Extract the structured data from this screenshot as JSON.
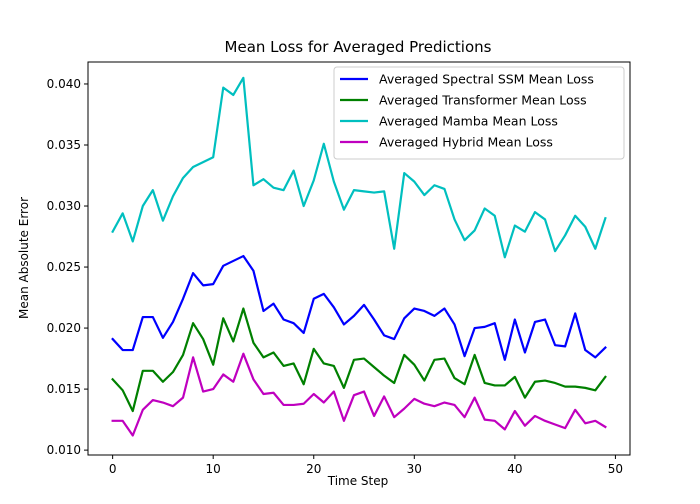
{
  "chart_data": {
    "type": "line",
    "title": "Mean Loss for Averaged Predictions",
    "xlabel": "Time Step",
    "ylabel": "Mean Absolute Error",
    "xlim": [
      -2.45,
      51.45
    ],
    "ylim": [
      0.0096,
      0.0418
    ],
    "xticks": [
      0,
      10,
      20,
      30,
      40,
      50
    ],
    "yticks": [
      0.01,
      0.015,
      0.02,
      0.025,
      0.03,
      0.035,
      0.04
    ],
    "xtick_labels": [
      "0",
      "10",
      "20",
      "30",
      "40",
      "50"
    ],
    "ytick_labels": [
      "0.010",
      "0.015",
      "0.020",
      "0.025",
      "0.030",
      "0.035",
      "0.040"
    ],
    "grid": false,
    "legend_position": "upper right",
    "x": [
      0,
      1,
      2,
      3,
      4,
      5,
      6,
      7,
      8,
      9,
      10,
      11,
      12,
      13,
      14,
      15,
      16,
      17,
      18,
      19,
      20,
      21,
      22,
      23,
      24,
      25,
      26,
      27,
      28,
      29,
      30,
      31,
      32,
      33,
      34,
      35,
      36,
      37,
      38,
      39,
      40,
      41,
      42,
      43,
      44,
      45,
      46,
      47,
      48,
      49
    ],
    "series": [
      {
        "name": "Averaged Spectral SSM Mean Loss",
        "color": "#0000ff",
        "values": [
          0.0191,
          0.0182,
          0.0182,
          0.0209,
          0.0209,
          0.0192,
          0.0205,
          0.0224,
          0.0245,
          0.0235,
          0.0236,
          0.0251,
          0.0255,
          0.0259,
          0.0247,
          0.0214,
          0.022,
          0.0207,
          0.0204,
          0.0196,
          0.0224,
          0.0228,
          0.0217,
          0.0203,
          0.021,
          0.0219,
          0.0207,
          0.0194,
          0.0191,
          0.0208,
          0.0216,
          0.0214,
          0.021,
          0.0216,
          0.0203,
          0.0177,
          0.02,
          0.0201,
          0.0204,
          0.0174,
          0.0207,
          0.018,
          0.0205,
          0.0207,
          0.0186,
          0.0185,
          0.0212,
          0.0182,
          0.0176,
          0.0184
        ]
      },
      {
        "name": "Averaged Transformer Mean Loss",
        "color": "#008000",
        "values": [
          0.0158,
          0.0149,
          0.0132,
          0.0165,
          0.0165,
          0.0156,
          0.0164,
          0.0178,
          0.0204,
          0.0191,
          0.017,
          0.0208,
          0.0189,
          0.0216,
          0.0188,
          0.0176,
          0.018,
          0.0169,
          0.0171,
          0.0154,
          0.0183,
          0.0171,
          0.0169,
          0.0151,
          0.0174,
          0.0175,
          0.0168,
          0.0161,
          0.0155,
          0.0178,
          0.017,
          0.0157,
          0.0174,
          0.0175,
          0.0159,
          0.0154,
          0.0178,
          0.0155,
          0.0153,
          0.0153,
          0.016,
          0.0143,
          0.0156,
          0.0157,
          0.0155,
          0.0152,
          0.0152,
          0.0151,
          0.0149,
          0.016
        ]
      },
      {
        "name": "Averaged Mamba Mean Loss",
        "color": "#00bfbf",
        "values": [
          0.0279,
          0.0294,
          0.0271,
          0.03,
          0.0313,
          0.0288,
          0.0308,
          0.0323,
          0.0332,
          0.0336,
          0.034,
          0.0397,
          0.0391,
          0.0405,
          0.0317,
          0.0322,
          0.0315,
          0.0313,
          0.0329,
          0.03,
          0.0321,
          0.0351,
          0.032,
          0.0297,
          0.0313,
          0.0312,
          0.0311,
          0.0312,
          0.0265,
          0.0327,
          0.032,
          0.0309,
          0.0317,
          0.0314,
          0.0289,
          0.0272,
          0.028,
          0.0298,
          0.0292,
          0.0258,
          0.0284,
          0.0279,
          0.0295,
          0.0289,
          0.0263,
          0.0276,
          0.0292,
          0.0283,
          0.0265,
          0.029
        ]
      },
      {
        "name": "Averaged Hybrid Mean Loss",
        "color": "#bf00bf",
        "values": [
          0.0124,
          0.0124,
          0.0112,
          0.0133,
          0.0141,
          0.0139,
          0.0136,
          0.0143,
          0.0176,
          0.0148,
          0.015,
          0.0162,
          0.0156,
          0.0179,
          0.0158,
          0.0146,
          0.0147,
          0.0137,
          0.0137,
          0.0138,
          0.0146,
          0.0139,
          0.0148,
          0.0124,
          0.0145,
          0.0148,
          0.0128,
          0.0144,
          0.0127,
          0.0134,
          0.0142,
          0.0138,
          0.0136,
          0.0139,
          0.0137,
          0.0127,
          0.0143,
          0.0125,
          0.0124,
          0.0117,
          0.0132,
          0.012,
          0.0128,
          0.0124,
          0.0121,
          0.0118,
          0.0133,
          0.0122,
          0.0124,
          0.0119
        ]
      }
    ]
  }
}
